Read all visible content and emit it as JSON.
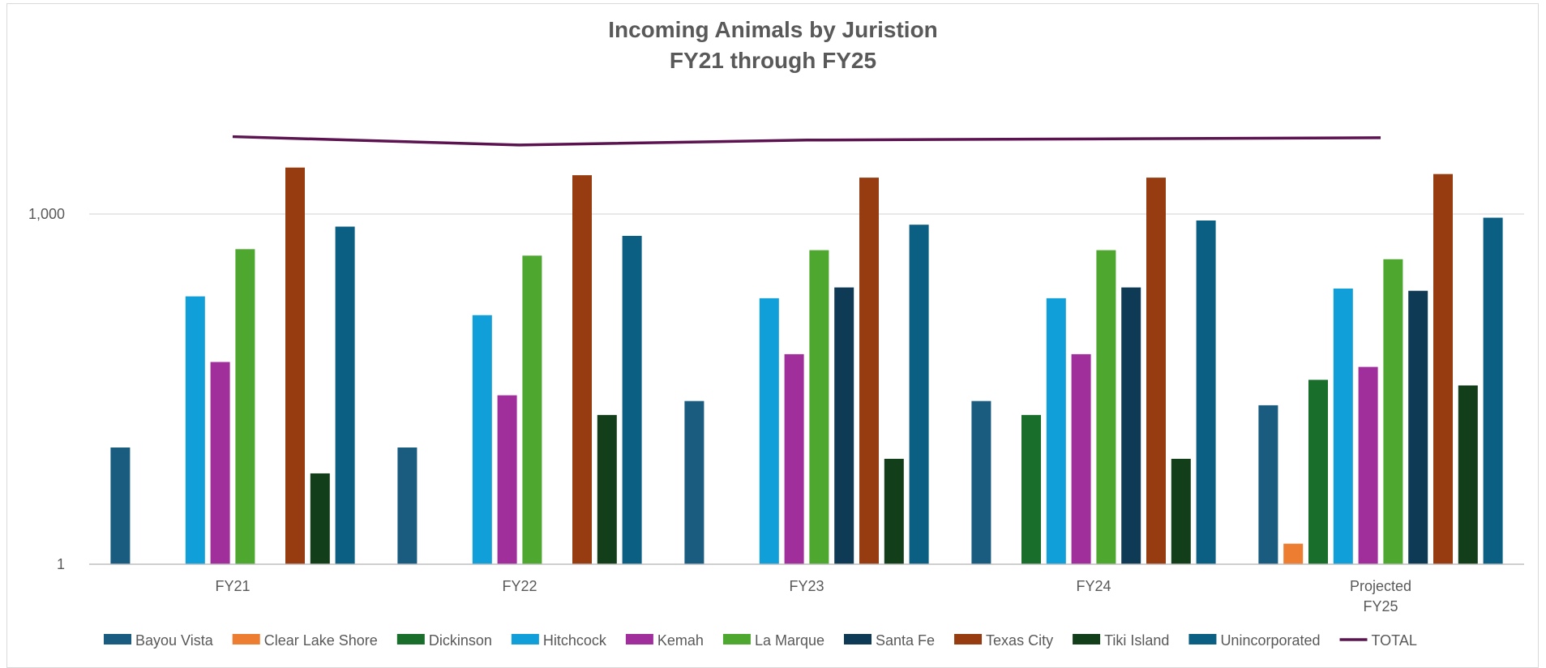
{
  "chart_data": {
    "type": "bar",
    "title": "Incoming Animals by Juristion",
    "subtitle": "FY21 through FY25",
    "y_scale": "log",
    "ylim": [
      1,
      10000
    ],
    "y_ticks": [
      {
        "value": 1,
        "label": "1"
      },
      {
        "value": 1000,
        "label": "1,000"
      }
    ],
    "grid": true,
    "legend_position": "bottom",
    "categories": [
      [
        "FY21"
      ],
      [
        "FY22"
      ],
      [
        "FY23"
      ],
      [
        "FY24"
      ],
      [
        "Projected",
        "FY25"
      ]
    ],
    "series": [
      {
        "name": "Bayou Vista",
        "type": "bar",
        "color": "#1a5b80",
        "values": [
          10,
          10,
          25,
          25,
          23
        ]
      },
      {
        "name": "Clear Lake Shore",
        "type": "bar",
        "color": "#ed7d31",
        "values": [
          0,
          0,
          0,
          0,
          1.5
        ]
      },
      {
        "name": "Dickinson",
        "type": "bar",
        "color": "#1a6e2b",
        "values": [
          0,
          0,
          0,
          19,
          38
        ]
      },
      {
        "name": "Hitchcock",
        "type": "bar",
        "color": "#109fd8",
        "values": [
          197,
          136,
          190,
          190,
          230
        ]
      },
      {
        "name": "Kemah",
        "type": "bar",
        "color": "#a02e9b",
        "values": [
          54,
          28,
          63,
          63,
          49
        ]
      },
      {
        "name": "La Marque",
        "type": "bar",
        "color": "#4ea72e",
        "values": [
          500,
          440,
          490,
          490,
          410
        ]
      },
      {
        "name": "Santa Fe",
        "type": "bar",
        "color": "#0e3a55",
        "values": [
          0,
          0,
          235,
          235,
          220
        ]
      },
      {
        "name": "Texas City",
        "type": "bar",
        "color": "#963c10",
        "values": [
          2500,
          2150,
          2050,
          2050,
          2200
        ]
      },
      {
        "name": "Tiki Island",
        "type": "bar",
        "color": "#123f19",
        "values": [
          6,
          19,
          8,
          8,
          34
        ]
      },
      {
        "name": "Unincorporated",
        "type": "bar",
        "color": "#0b5f82",
        "values": [
          780,
          650,
          810,
          880,
          930
        ]
      },
      {
        "name": "TOTAL",
        "type": "line",
        "color": "#5c1451",
        "values": [
          4600,
          3900,
          4300,
          4400,
          4500
        ]
      }
    ]
  }
}
